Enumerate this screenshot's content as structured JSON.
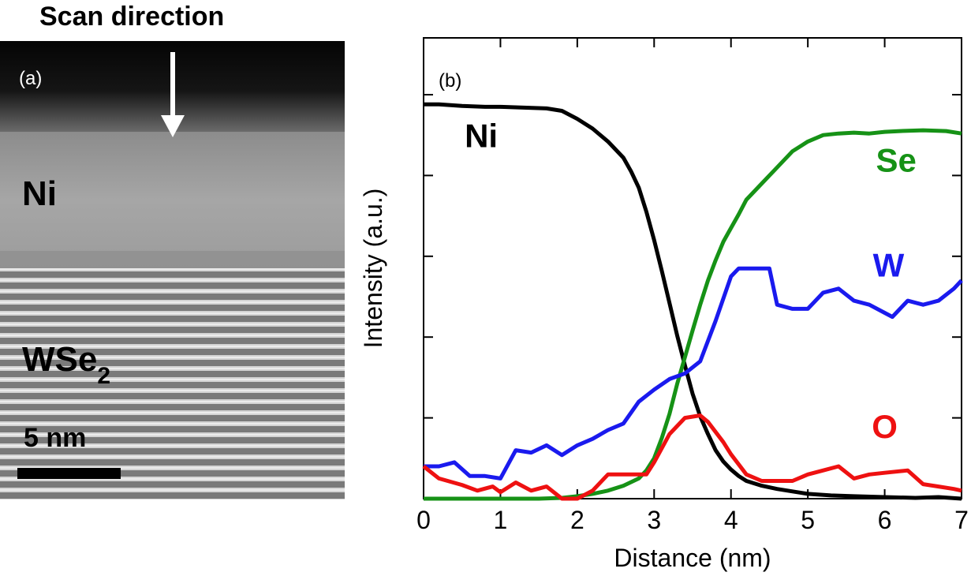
{
  "panel_a": {
    "title": "Scan direction",
    "panel_label": "(a)",
    "layer_top": "Ni",
    "layer_bottom_main": "WSe",
    "layer_bottom_sub": "2",
    "scale_label": "5 nm",
    "colors": {
      "vacuum": "#0a0a0a",
      "ni": "#a4a4a4",
      "wse2_light": "#d9d9d9",
      "wse2_dark": "#6e6e6e",
      "arrow": "#ffffff"
    }
  },
  "chart_data": {
    "type": "line",
    "panel_label": "(b)",
    "xlabel": "Distance (nm)",
    "ylabel": "Intensity (a.u.)",
    "xlim": [
      0,
      7
    ],
    "ylim": [
      0,
      5
    ],
    "xticks": [
      "0",
      "1",
      "2",
      "3",
      "4",
      "5",
      "6",
      "7"
    ],
    "yticks_labeled": false,
    "grid": false,
    "series": [
      {
        "name": "Ni",
        "color": "#000000",
        "x": [
          0,
          0.2,
          0.5,
          0.8,
          1.0,
          1.3,
          1.6,
          1.8,
          2.0,
          2.2,
          2.4,
          2.6,
          2.7,
          2.8,
          2.9,
          3.0,
          3.1,
          3.2,
          3.3,
          3.4,
          3.5,
          3.6,
          3.7,
          3.8,
          3.9,
          4.0,
          4.1,
          4.2,
          4.4,
          4.6,
          4.8,
          5.0,
          5.3,
          5.6,
          6.0,
          6.4,
          6.7,
          7.0
        ],
        "y": [
          4.88,
          4.88,
          4.86,
          4.85,
          4.85,
          4.84,
          4.83,
          4.8,
          4.7,
          4.58,
          4.42,
          4.22,
          4.05,
          3.85,
          3.55,
          3.2,
          2.82,
          2.42,
          2.02,
          1.65,
          1.3,
          1.02,
          0.8,
          0.6,
          0.46,
          0.36,
          0.28,
          0.22,
          0.16,
          0.12,
          0.09,
          0.06,
          0.04,
          0.03,
          0.02,
          0.01,
          0.02,
          0.0
        ]
      },
      {
        "name": "Se",
        "color": "#169216",
        "x": [
          0,
          0.5,
          1.0,
          1.5,
          1.8,
          2.0,
          2.2,
          2.4,
          2.6,
          2.8,
          2.9,
          3.0,
          3.1,
          3.2,
          3.3,
          3.4,
          3.5,
          3.6,
          3.7,
          3.8,
          3.9,
          4.0,
          4.1,
          4.2,
          4.4,
          4.6,
          4.8,
          5.0,
          5.2,
          5.4,
          5.6,
          5.8,
          6.0,
          6.2,
          6.5,
          6.8,
          7.0
        ],
        "y": [
          0.0,
          0.0,
          0.0,
          0.0,
          0.01,
          0.03,
          0.06,
          0.1,
          0.16,
          0.25,
          0.35,
          0.5,
          0.75,
          1.05,
          1.42,
          1.75,
          2.08,
          2.4,
          2.7,
          2.95,
          3.18,
          3.35,
          3.52,
          3.7,
          3.9,
          4.1,
          4.3,
          4.42,
          4.5,
          4.52,
          4.53,
          4.52,
          4.54,
          4.55,
          4.56,
          4.55,
          4.52
        ]
      },
      {
        "name": "W",
        "color": "#1a1aee",
        "x": [
          0,
          0.2,
          0.4,
          0.6,
          0.8,
          1.0,
          1.2,
          1.4,
          1.6,
          1.8,
          2.0,
          2.2,
          2.4,
          2.6,
          2.8,
          3.0,
          3.2,
          3.4,
          3.6,
          3.8,
          4.0,
          4.1,
          4.3,
          4.5,
          4.6,
          4.8,
          5.0,
          5.2,
          5.4,
          5.6,
          5.8,
          6.0,
          6.1,
          6.3,
          6.5,
          6.7,
          6.9,
          7.0
        ],
        "y": [
          0.4,
          0.4,
          0.45,
          0.28,
          0.28,
          0.25,
          0.6,
          0.57,
          0.66,
          0.54,
          0.66,
          0.74,
          0.85,
          0.93,
          1.2,
          1.35,
          1.48,
          1.55,
          1.7,
          2.2,
          2.75,
          2.85,
          2.85,
          2.85,
          2.4,
          2.35,
          2.35,
          2.55,
          2.6,
          2.45,
          2.4,
          2.3,
          2.25,
          2.45,
          2.4,
          2.45,
          2.6,
          2.7
        ]
      },
      {
        "name": "O",
        "color": "#ee1111",
        "x": [
          0,
          0.2,
          0.5,
          0.7,
          0.9,
          1.0,
          1.2,
          1.4,
          1.6,
          1.8,
          2.0,
          2.2,
          2.4,
          2.5,
          2.7,
          2.9,
          3.0,
          3.2,
          3.4,
          3.6,
          3.7,
          3.9,
          4.0,
          4.2,
          4.4,
          4.6,
          4.8,
          5.0,
          5.2,
          5.4,
          5.6,
          5.8,
          6.0,
          6.3,
          6.5,
          6.7,
          6.9,
          7.0
        ],
        "y": [
          0.4,
          0.25,
          0.17,
          0.1,
          0.15,
          0.08,
          0.2,
          0.1,
          0.15,
          0.0,
          0.0,
          0.1,
          0.3,
          0.3,
          0.3,
          0.3,
          0.45,
          0.8,
          1.0,
          1.03,
          0.95,
          0.7,
          0.55,
          0.3,
          0.22,
          0.22,
          0.22,
          0.3,
          0.35,
          0.4,
          0.25,
          0.3,
          0.32,
          0.35,
          0.18,
          0.15,
          0.12,
          0.1
        ]
      }
    ],
    "annotations": [
      {
        "text": "Ni",
        "color": "#000000",
        "x": 0.75,
        "y": 4.35
      },
      {
        "text": "Se",
        "color": "#169216",
        "x": 6.15,
        "y": 4.05
      },
      {
        "text": "W",
        "color": "#1a1aee",
        "x": 6.05,
        "y": 2.75
      },
      {
        "text": "O",
        "color": "#ee1111",
        "x": 6.0,
        "y": 0.75
      }
    ]
  }
}
